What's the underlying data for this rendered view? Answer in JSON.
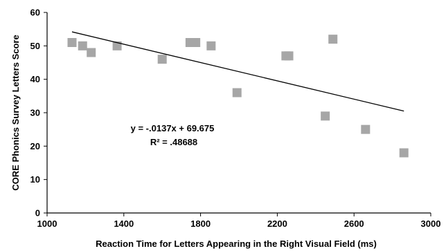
{
  "chart_data": {
    "type": "scatter",
    "title": "",
    "xlabel": "Reaction Time for Letters Appearing in the Right Visual Field (ms)",
    "ylabel": "CORE Phonics Survey Letters Score",
    "xlim": [
      1000,
      3000
    ],
    "ylim": [
      0,
      60
    ],
    "xticks": [
      1000,
      1400,
      1800,
      2200,
      2600,
      3000
    ],
    "yticks": [
      0,
      10,
      20,
      30,
      40,
      50,
      60
    ],
    "grid": false,
    "legend": "none",
    "marker_color": "#a6a6a6",
    "series": [
      {
        "points": [
          {
            "x": 1130,
            "y": 51
          },
          {
            "x": 1185,
            "y": 50
          },
          {
            "x": 1230,
            "y": 48
          },
          {
            "x": 1365,
            "y": 50
          },
          {
            "x": 1600,
            "y": 46
          },
          {
            "x": 1745,
            "y": 51
          },
          {
            "x": 1775,
            "y": 51
          },
          {
            "x": 1855,
            "y": 50
          },
          {
            "x": 1990,
            "y": 36
          },
          {
            "x": 2245,
            "y": 47
          },
          {
            "x": 2260,
            "y": 47
          },
          {
            "x": 2450,
            "y": 29
          },
          {
            "x": 2490,
            "y": 52
          },
          {
            "x": 2660,
            "y": 25
          },
          {
            "x": 2860,
            "y": 18
          }
        ]
      }
    ],
    "trendline": {
      "x_start": 1130,
      "x_end": 2860,
      "slope": -0.0137,
      "intercept": 69.675,
      "color": "#000000"
    },
    "annotations": [
      "y = -.0137x + 69.675",
      "R² = .48688"
    ]
  }
}
